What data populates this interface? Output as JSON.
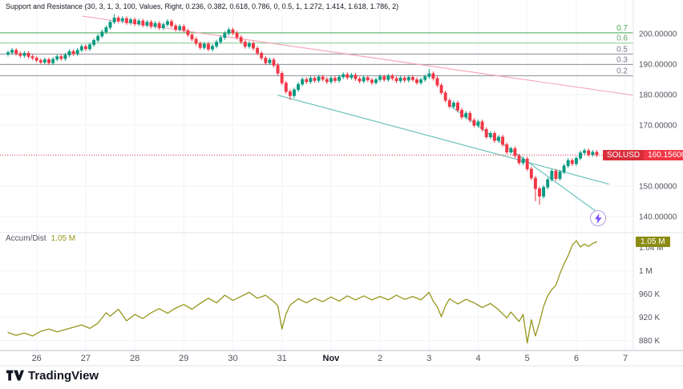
{
  "logo": {
    "text": "TradingView"
  },
  "chart_data": [
    {
      "type": "candlestick",
      "title": "Support and Resistance (30, 3, 1, 3, 100, Values, Right, 0.236, 0.382, 0.618, 0.786, 0, 0.5, 1, 1.272, 1.414, 1.618, 1.786, 2)",
      "symbol": "SOLUSD",
      "last_price": 160.156,
      "last_label": "160.15600",
      "up_color": "#089981",
      "down_color": "#f23645",
      "ylim": [
        134.7,
        211.05
      ],
      "first_open": 193.2,
      "default_wick": 0.7,
      "closes": [
        193.8,
        194.6,
        193.5,
        192.8,
        193.6,
        192.5,
        192.0,
        191.2,
        190.6,
        191.5,
        190.4,
        191.6,
        192.5,
        191.8,
        193.0,
        194.2,
        193.4,
        194.6,
        195.8,
        195.0,
        196.4,
        197.8,
        199.2,
        200.6,
        202.0,
        203.8,
        205.2,
        204.2,
        205.0,
        203.6,
        204.6,
        203.2,
        204.2,
        202.8,
        203.8,
        202.4,
        203.4,
        201.9,
        203.0,
        204.0,
        202.6,
        201.4,
        202.4,
        201.0,
        199.6,
        198.2,
        196.8,
        195.4,
        196.6,
        194.9,
        195.9,
        197.3,
        198.7,
        200.1,
        201.3,
        200.2,
        198.8,
        197.3,
        195.8,
        196.8,
        195.2,
        193.6,
        192.0,
        190.4,
        191.4,
        189.6,
        187.0,
        183.8,
        181.0,
        179.6,
        181.6,
        183.4,
        185.0,
        184.2,
        185.4,
        184.6,
        185.8,
        185.0,
        184.2,
        185.4,
        184.6,
        185.8,
        186.6,
        185.6,
        186.4,
        185.2,
        184.4,
        185.6,
        184.8,
        183.9,
        184.9,
        185.9,
        184.9,
        186.1,
        185.3,
        184.5,
        185.5,
        184.7,
        185.7,
        184.9,
        183.9,
        184.9,
        185.9,
        186.9,
        185.3,
        183.1,
        180.6,
        178.1,
        176.1,
        177.3,
        174.9,
        172.6,
        173.9,
        171.6,
        169.9,
        171.1,
        168.6,
        166.1,
        167.3,
        164.9,
        166.1,
        163.6,
        161.1,
        162.3,
        159.9,
        157.6,
        158.9,
        155.6,
        152.6,
        149.1,
        146.6,
        149.6,
        152.1,
        154.9,
        152.4,
        154.6,
        156.6,
        158.4,
        157.3,
        159.1,
        160.9,
        161.6,
        160.3,
        161.1,
        160.156
      ],
      "wick_overrides": {
        "26": {
          "high": 206.4
        },
        "69": {
          "low": 178.2
        },
        "103": {
          "high": 188.4
        },
        "129": {
          "low": 145.0
        },
        "130": {
          "low": 143.8
        }
      },
      "grid_prices": [
        200,
        190,
        180,
        170,
        160,
        150,
        140
      ],
      "price_axis_labels": [
        [
          200,
          "200.00000"
        ],
        [
          190,
          "190.00000"
        ],
        [
          180,
          "180.00000"
        ],
        [
          170,
          "170.00000"
        ],
        [
          150,
          "150.00000"
        ],
        [
          140,
          "140.00000"
        ]
      ],
      "fib_levels": [
        {
          "label": "0.7",
          "price": 200.3,
          "line_color": "#4caf50",
          "label_color": "#4caf50"
        },
        {
          "label": "0.6",
          "price": 196.9,
          "line_color": "#86c98f",
          "label_color": "#66a86f"
        },
        {
          "label": "0.5",
          "price": 193.3,
          "line_color": "#8a8d94",
          "label_color": "#787b86"
        },
        {
          "label": "0.3",
          "price": 189.9,
          "line_color": "#8a8d94",
          "label_color": "#787b86"
        },
        {
          "label": "0.2",
          "price": 186.2,
          "line_color": "#8a8d94",
          "label_color": "#787b86"
        }
      ],
      "trendlines": [
        {
          "points": [
            [
              18,
              205.8
            ],
            [
              153,
              179.8
            ]
          ],
          "color": "#f5a0b5"
        },
        {
          "points": [
            [
              66,
              179.8
            ],
            [
              147,
              150.6
            ]
          ],
          "color": "#5bbdb4"
        },
        {
          "points": [
            [
              108,
              176.5
            ],
            [
              144,
              141.5
            ]
          ],
          "color": "#5bbdb4"
        }
      ],
      "price_line": {
        "price": 160.156,
        "color": "#f23645"
      },
      "x_ticks": [
        [
          "26",
          7
        ],
        [
          "27",
          19
        ],
        [
          "28",
          31
        ],
        [
          "29",
          43
        ],
        [
          "30",
          55
        ],
        [
          "31",
          67
        ],
        [
          "Nov",
          79
        ],
        [
          "2",
          91
        ],
        [
          "3",
          103
        ],
        [
          "4",
          115
        ],
        [
          "5",
          127
        ],
        [
          "6",
          139
        ],
        [
          "7",
          151
        ]
      ]
    },
    {
      "type": "line",
      "name": "Accum/Dist",
      "value_label": "1.05 M",
      "color": "#96961c",
      "badge_color": "#8c8c14",
      "ylim": [
        863,
        1063
      ],
      "points": [
        [
          0,
          894
        ],
        [
          2,
          889
        ],
        [
          4,
          893
        ],
        [
          6,
          888
        ],
        [
          8,
          896
        ],
        [
          10,
          900
        ],
        [
          12,
          895
        ],
        [
          14,
          899
        ],
        [
          16,
          903
        ],
        [
          18,
          907
        ],
        [
          20,
          901
        ],
        [
          22,
          910
        ],
        [
          24,
          928
        ],
        [
          25,
          922
        ],
        [
          27,
          934
        ],
        [
          29,
          914
        ],
        [
          31,
          925
        ],
        [
          33,
          918
        ],
        [
          35,
          928
        ],
        [
          37,
          935
        ],
        [
          39,
          927
        ],
        [
          41,
          936
        ],
        [
          43,
          942
        ],
        [
          45,
          934
        ],
        [
          47,
          944
        ],
        [
          49,
          953
        ],
        [
          51,
          945
        ],
        [
          53,
          958
        ],
        [
          55,
          949
        ],
        [
          57,
          956
        ],
        [
          59,
          963
        ],
        [
          61,
          953
        ],
        [
          63,
          958
        ],
        [
          65,
          947
        ],
        [
          66,
          940
        ],
        [
          67,
          900
        ],
        [
          68,
          926
        ],
        [
          69,
          941
        ],
        [
          71,
          952
        ],
        [
          73,
          945
        ],
        [
          75,
          953
        ],
        [
          77,
          947
        ],
        [
          79,
          955
        ],
        [
          81,
          948
        ],
        [
          83,
          957
        ],
        [
          85,
          950
        ],
        [
          87,
          957
        ],
        [
          89,
          950
        ],
        [
          91,
          956
        ],
        [
          93,
          950
        ],
        [
          95,
          958
        ],
        [
          97,
          951
        ],
        [
          99,
          956
        ],
        [
          101,
          950
        ],
        [
          103,
          963
        ],
        [
          104,
          948
        ],
        [
          105,
          938
        ],
        [
          106,
          921
        ],
        [
          107,
          940
        ],
        [
          108,
          952
        ],
        [
          110,
          943
        ],
        [
          112,
          951
        ],
        [
          114,
          945
        ],
        [
          116,
          937
        ],
        [
          118,
          944
        ],
        [
          120,
          933
        ],
        [
          122,
          919
        ],
        [
          123,
          929
        ],
        [
          125,
          913
        ],
        [
          126,
          925
        ],
        [
          127,
          876
        ],
        [
          128,
          916
        ],
        [
          129,
          888
        ],
        [
          130,
          911
        ],
        [
          131,
          939
        ],
        [
          132,
          957
        ],
        [
          133,
          968
        ],
        [
          134,
          975
        ],
        [
          135,
          995
        ],
        [
          136,
          1012
        ],
        [
          137,
          1026
        ],
        [
          138,
          1044
        ],
        [
          139,
          1052
        ],
        [
          140,
          1041
        ],
        [
          141,
          1046
        ],
        [
          142,
          1042
        ],
        [
          143,
          1047
        ],
        [
          144,
          1050
        ]
      ],
      "axis_labels": [
        [
          1040,
          "1.04 M"
        ],
        [
          1000,
          "1 M"
        ],
        [
          960,
          "960 K"
        ],
        [
          920,
          "920 K"
        ],
        [
          880,
          "880 K"
        ]
      ],
      "grid_values": [
        1000,
        960,
        920,
        880
      ]
    }
  ]
}
